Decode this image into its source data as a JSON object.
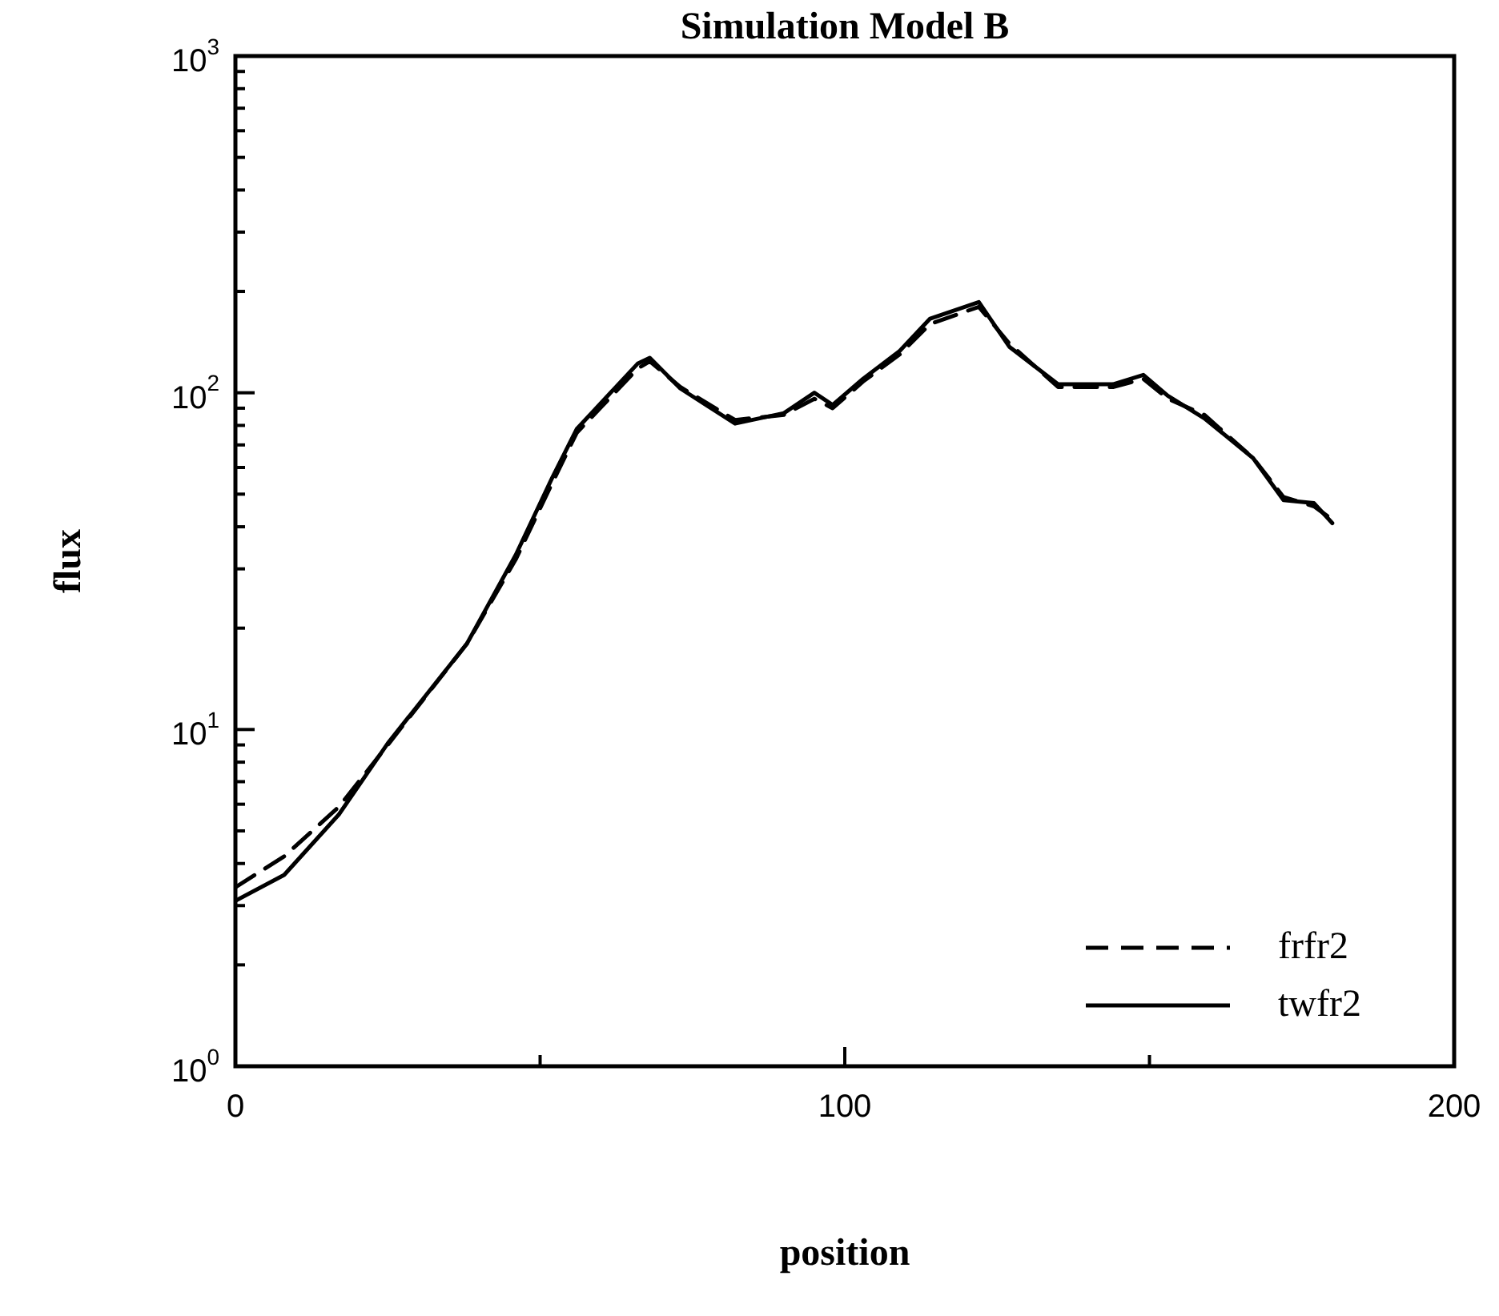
{
  "chart_data": {
    "type": "line",
    "title": "Simulation Model B",
    "xlabel": "position",
    "ylabel": "flux",
    "log": "y",
    "legend": "bottom right",
    "marker": "none",
    "xlim": [
      0,
      200
    ],
    "xticks": [
      0,
      {
        "value": 50,
        "label": null
      },
      100,
      {
        "value": 150,
        "label": null
      },
      200
    ],
    "ylim": [
      1,
      1000
    ],
    "yticks": [
      {
        "value": 1,
        "label": "10$^{0}$"
      },
      {
        "value": 2,
        "label": null
      },
      {
        "value": 3,
        "label": null
      },
      {
        "value": 4,
        "label": null
      },
      {
        "value": 5,
        "label": null
      },
      {
        "value": 6,
        "label": null
      },
      {
        "value": 7,
        "label": null
      },
      {
        "value": 8,
        "label": null
      },
      {
        "value": 9,
        "label": null
      },
      {
        "value": 10,
        "label": "10$^{1}$"
      },
      {
        "value": 20,
        "label": null
      },
      {
        "value": 30,
        "label": null
      },
      {
        "value": 40,
        "label": null
      },
      {
        "value": 50,
        "label": null
      },
      {
        "value": 60,
        "label": null
      },
      {
        "value": 70,
        "label": null
      },
      {
        "value": 80,
        "label": null
      },
      {
        "value": 90,
        "label": null
      },
      {
        "value": 100,
        "label": "10$^{2}$"
      },
      {
        "value": 200,
        "label": null
      },
      {
        "value": 300,
        "label": null
      },
      {
        "value": 400,
        "label": null
      },
      {
        "value": 500,
        "label": null
      },
      {
        "value": 600,
        "label": null
      },
      {
        "value": 700,
        "label": null
      },
      {
        "value": 800,
        "label": null
      },
      {
        "value": 900,
        "label": null
      },
      {
        "value": 1000,
        "label": "10$^{3}$"
      }
    ],
    "series": [
      {
        "name": "frfr2",
        "color": "#000000",
        "line_style": "dashed",
        "x": [
          0,
          8,
          17,
          25,
          38,
          46,
          52,
          56,
          66,
          68,
          73,
          82,
          90,
          95,
          98,
          103,
          109,
          114,
          122,
          127,
          135,
          144,
          149,
          153,
          159,
          167,
          172,
          177,
          180
        ],
        "values": [
          3.4,
          4.2,
          5.9,
          9.0,
          18,
          32,
          54,
          76,
          118,
          124,
          104,
          83,
          86,
          96,
          90,
          108,
          130,
          160,
          180,
          140,
          104,
          104,
          110,
          96,
          86,
          64,
          49,
          46,
          42
        ]
      },
      {
        "name": "twfr2",
        "color": "#000000",
        "line_style": "solid",
        "x": [
          0,
          8,
          17,
          25,
          38,
          46,
          52,
          56,
          66,
          68,
          73,
          82,
          90,
          95,
          98,
          103,
          109,
          114,
          122,
          127,
          135,
          144,
          149,
          153,
          159,
          167,
          172,
          177,
          180
        ],
        "values": [
          3.1,
          3.7,
          5.6,
          9.1,
          18,
          33,
          56,
          78,
          122,
          127,
          103,
          81,
          87,
          100,
          92,
          110,
          133,
          166,
          186,
          137,
          106,
          106,
          113,
          98,
          84,
          64,
          48,
          47,
          41
        ]
      }
    ]
  }
}
